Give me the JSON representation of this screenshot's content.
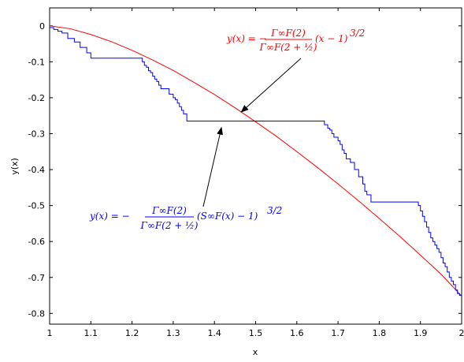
{
  "chart_data": {
    "type": "line",
    "title": "",
    "xlabel": "x",
    "ylabel": "y(x)",
    "xlim": [
      1,
      2
    ],
    "ylim": [
      -0.83,
      0.05
    ],
    "grid": false,
    "x_ticks": [
      "1",
      "1.1",
      "1.2",
      "1.3",
      "1.4",
      "1.5",
      "1.6",
      "1.7",
      "1.8",
      "1.9",
      "2"
    ],
    "y_ticks": [
      "0",
      "-0.1",
      "-0.2",
      "-0.3",
      "-0.4",
      "-0.5",
      "-0.6",
      "-0.7",
      "-0.8"
    ],
    "series": [
      {
        "color": "#ff0000",
        "style": "smooth",
        "x": [
          1.0,
          1.05,
          1.1,
          1.15,
          1.2,
          1.25,
          1.3,
          1.35,
          1.4,
          1.45,
          1.5,
          1.55,
          1.6,
          1.65,
          1.7,
          1.75,
          1.8,
          1.85,
          1.9,
          1.95,
          2.0
        ],
        "y": [
          0.0,
          -0.008,
          -0.024,
          -0.044,
          -0.068,
          -0.095,
          -0.124,
          -0.157,
          -0.191,
          -0.228,
          -0.267,
          -0.307,
          -0.35,
          -0.394,
          -0.44,
          -0.487,
          -0.536,
          -0.586,
          -0.638,
          -0.691,
          -0.752
        ]
      },
      {
        "color": "#0000ff",
        "style": "staircase",
        "x": [
          1.0,
          1.005,
          1.01,
          1.015,
          1.02,
          1.025,
          1.03,
          1.037,
          1.044,
          1.052,
          1.06,
          1.067,
          1.074,
          1.082,
          1.09,
          1.1,
          1.15,
          1.2,
          1.225,
          1.23,
          1.235,
          1.24,
          1.245,
          1.25,
          1.255,
          1.26,
          1.265,
          1.27,
          1.28,
          1.29,
          1.3,
          1.305,
          1.31,
          1.315,
          1.32,
          1.325,
          1.333,
          1.4,
          1.5,
          1.6,
          1.667,
          1.675,
          1.68,
          1.685,
          1.69,
          1.7,
          1.705,
          1.71,
          1.715,
          1.72,
          1.725,
          1.73,
          1.74,
          1.75,
          1.76,
          1.765,
          1.77,
          1.78,
          1.85,
          1.89,
          1.895,
          1.9,
          1.905,
          1.91,
          1.915,
          1.92,
          1.925,
          1.93,
          1.935,
          1.94,
          1.945,
          1.95,
          1.955,
          1.96,
          1.965,
          1.97,
          1.975,
          1.98,
          1.985,
          1.99,
          1.995,
          2.0
        ],
        "y": [
          -0.005,
          -0.005,
          -0.01,
          -0.01,
          -0.015,
          -0.015,
          -0.02,
          -0.02,
          -0.035,
          -0.035,
          -0.045,
          -0.045,
          -0.06,
          -0.06,
          -0.075,
          -0.09,
          -0.09,
          -0.09,
          -0.1,
          -0.11,
          -0.115,
          -0.125,
          -0.13,
          -0.14,
          -0.148,
          -0.155,
          -0.165,
          -0.175,
          -0.175,
          -0.19,
          -0.2,
          -0.205,
          -0.215,
          -0.225,
          -0.235,
          -0.245,
          -0.265,
          -0.265,
          -0.265,
          -0.265,
          -0.275,
          -0.285,
          -0.29,
          -0.3,
          -0.31,
          -0.32,
          -0.33,
          -0.345,
          -0.355,
          -0.37,
          -0.37,
          -0.38,
          -0.4,
          -0.42,
          -0.44,
          -0.46,
          -0.47,
          -0.49,
          -0.49,
          -0.49,
          -0.5,
          -0.515,
          -0.53,
          -0.545,
          -0.56,
          -0.575,
          -0.59,
          -0.6,
          -0.61,
          -0.62,
          -0.63,
          -0.645,
          -0.66,
          -0.67,
          -0.685,
          -0.7,
          -0.71,
          -0.72,
          -0.735,
          -0.745,
          -0.75,
          -0.752
        ]
      }
    ],
    "annotations": [
      {
        "color": "#ff0000",
        "label": "y(x) = −Γ∞F(2) / Γ∞F(2 + 1/2) · (x − 1)^(3/2)",
        "lhs": "y(x) = −",
        "num": "Γ∞F(2)",
        "den": "Γ∞F(2 + ½)",
        "rhs": "(x − 1)",
        "exp": "3/2",
        "arrow_to": [
          1.465,
          -0.24
        ]
      },
      {
        "color": "#0000ff",
        "label": "y(x) = −Γ∞F(2) / Γ∞F(2 + 1/2) · (S∞F(x) − 1)^(3/2)",
        "lhs": "y(x) = −",
        "num": "Γ∞F(2)",
        "den": "Γ∞F(2 + ½)",
        "rhs": "(S∞F(x) − 1)",
        "exp": "3/2",
        "arrow_to": [
          1.417,
          -0.283
        ]
      }
    ]
  }
}
